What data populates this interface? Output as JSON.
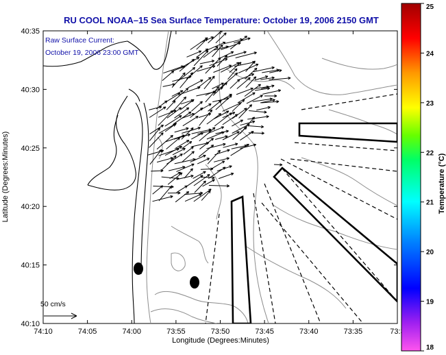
{
  "title": "RU COOL  NOAA–15  Sea Surface Temperature:  October 19, 2006 2150 GMT",
  "annotation": {
    "line1": "Raw Surface Current:",
    "line2": "October 19, 2006 23:00 GMT"
  },
  "x_axis": {
    "label": "Longitude (Degrees:Minutes)",
    "ticks": [
      "74:10",
      "74:05",
      "74:00",
      "73:55",
      "73:50",
      "73:45",
      "73:40",
      "73:35",
      "73:3"
    ]
  },
  "y_axis": {
    "label": "Latitude (Degrees:Minutes)",
    "ticks": [
      "40:35",
      "40:30",
      "40:25",
      "40:20",
      "40:15",
      "40:10"
    ]
  },
  "colorbar": {
    "label": "Temperature (°C)",
    "ticks": [
      "25",
      "24",
      "23",
      "22",
      "21",
      "20",
      "19",
      "18"
    ],
    "min": 18,
    "max": 25
  },
  "scale_vector": {
    "label": "50 cm/s"
  },
  "colors": {
    "title": "#1010a8",
    "contour": "#8c8c8c",
    "coast": "#000000"
  }
}
